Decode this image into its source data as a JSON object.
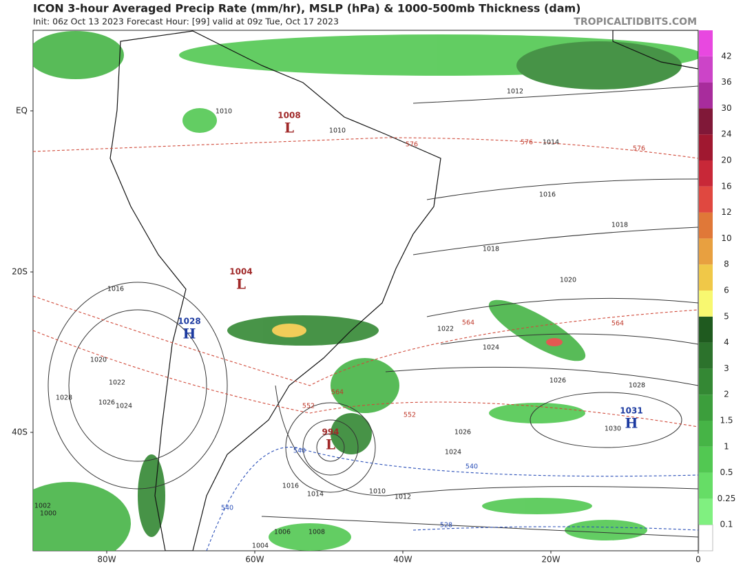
{
  "header": {
    "title": "ICON 3-hour Averaged Precip Rate (mm/hr), MSLP (hPa) & 1000-500mb Thickness (dam)",
    "subtitle": "Init: 06z Oct 13 2023   Forecast Hour: [99]   valid at 09z Tue, Oct 17 2023",
    "credit": "TROPICALTIDBITS.COM"
  },
  "axes": {
    "lat": [
      "EQ",
      "20S",
      "40S"
    ],
    "lon": [
      "80W",
      "60W",
      "40W",
      "20W",
      "0"
    ]
  },
  "colorbar": [
    {
      "value": 0.1,
      "color": "#80f080"
    },
    {
      "value": 0.25,
      "color": "#66dd66"
    },
    {
      "value": 0.5,
      "color": "#52c852"
    },
    {
      "value": 1,
      "color": "#46b446"
    },
    {
      "value": 1.5,
      "color": "#3c9e3c"
    },
    {
      "value": 2,
      "color": "#348834"
    },
    {
      "value": 3,
      "color": "#2c722c"
    },
    {
      "value": 4,
      "color": "#1f5a1f"
    },
    {
      "value": 5,
      "color": "#f8f870"
    },
    {
      "value": 6,
      "color": "#f0c848"
    },
    {
      "value": 8,
      "color": "#e8a040"
    },
    {
      "value": 10,
      "color": "#e07838"
    },
    {
      "value": 12,
      "color": "#e04840"
    },
    {
      "value": 16,
      "color": "#c82838"
    },
    {
      "value": 20,
      "color": "#a01830"
    },
    {
      "value": 24,
      "color": "#801838"
    },
    {
      "value": 30,
      "color": "#a82c9c"
    },
    {
      "value": 36,
      "color": "#cc44c8"
    },
    {
      "value": 42,
      "color": "#e848e0"
    }
  ],
  "centers": [
    {
      "letter": "L",
      "pressure": "1008"
    },
    {
      "letter": "L",
      "pressure": "1004"
    },
    {
      "letter": "H",
      "pressure": "1028"
    },
    {
      "letter": "L",
      "pressure": "994"
    },
    {
      "letter": "H",
      "pressure": "1031"
    }
  ],
  "contour_labels": [
    "1012",
    "1014",
    "1016",
    "1018",
    "1018",
    "1020",
    "1022",
    "1024",
    "1026",
    "1028",
    "1030",
    "1026",
    "1024",
    "1016",
    "1014",
    "1010",
    "1012",
    "1008",
    "1006",
    "1004",
    "1028",
    "1026",
    "1024",
    "1022",
    "1020",
    "1016",
    "1002",
    "1000",
    "1010",
    "1010"
  ],
  "thickness_labels": [
    "576",
    "576",
    "576",
    "564",
    "552",
    "552",
    "564",
    "564"
  ],
  "thickness_blue_labels": [
    "540",
    "540",
    "528",
    "540"
  ]
}
